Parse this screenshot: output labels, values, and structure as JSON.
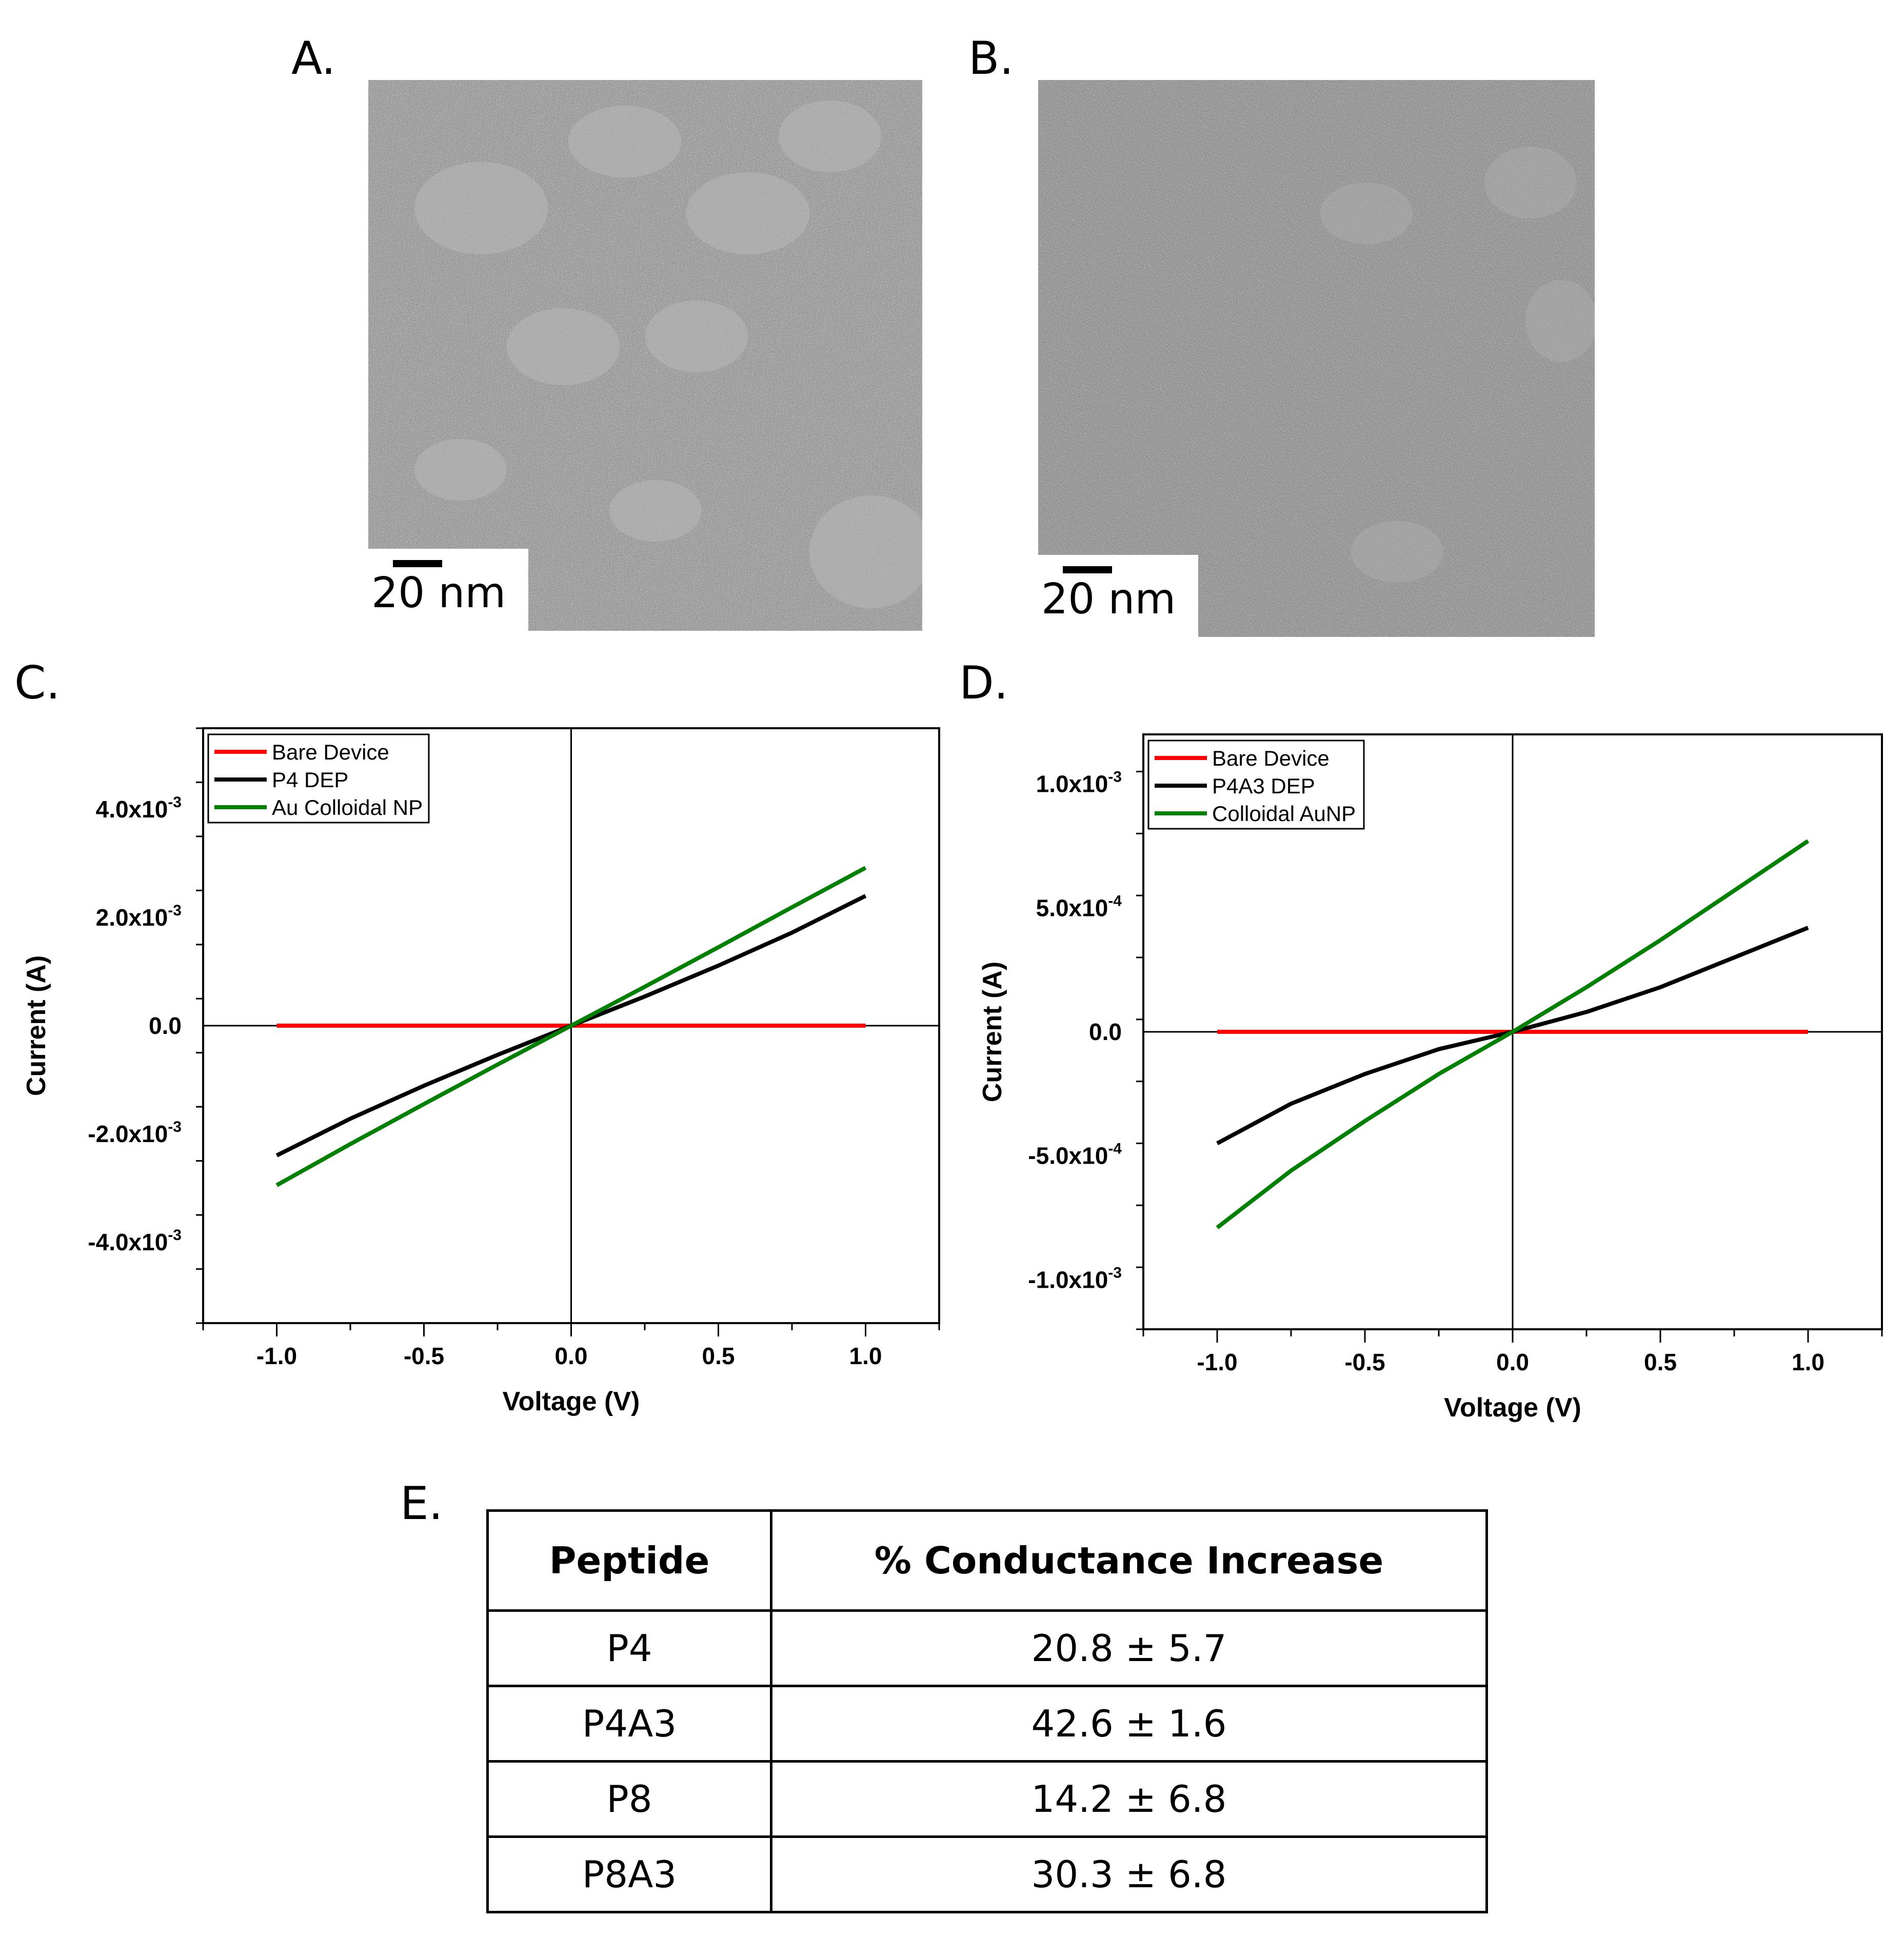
{
  "figure": {
    "panel_a": {
      "label": "A.",
      "scale_bar": "20 nm"
    },
    "panel_b": {
      "label": "B.",
      "scale_bar": "20 nm"
    },
    "panel_c": {
      "label": "C."
    },
    "panel_d": {
      "label": "D."
    },
    "panel_e": {
      "label": "E."
    }
  },
  "colors": {
    "bare": "#ff0000",
    "dep": "#000000",
    "colloid": "#008000"
  },
  "chart_data": [
    {
      "id": "C",
      "type": "line",
      "xlabel": "Voltage (V)",
      "ylabel": "Current (A)",
      "xlim": [
        -1.25,
        1.25
      ],
      "ylim": [
        -0.0055,
        0.0055
      ],
      "x_ticks": [
        -1.0,
        -0.5,
        0.0,
        0.5,
        1.0
      ],
      "x_tick_labels": [
        "-1.0",
        "-0.5",
        "0.0",
        "0.5",
        "1.0"
      ],
      "y_ticks": [
        -0.004,
        -0.002,
        0,
        0.002,
        0.004
      ],
      "y_tick_labels": [
        {
          "base": "-4.0x10",
          "exp": "-3"
        },
        {
          "base": "-2.0x10",
          "exp": "-3"
        },
        {
          "base": "0.0",
          "exp": ""
        },
        {
          "base": "2.0x10",
          "exp": "-3"
        },
        {
          "base": "4.0x10",
          "exp": "-3"
        }
      ],
      "legend_position": "top-left",
      "series": [
        {
          "name": "Bare Device",
          "color": "#ff0000",
          "x": [
            -1.0,
            1.0
          ],
          "y": [
            0,
            0
          ]
        },
        {
          "name": "P4 DEP",
          "color": "#000000",
          "x": [
            -1.0,
            -0.75,
            -0.5,
            -0.25,
            0.0,
            0.25,
            0.5,
            0.75,
            1.0
          ],
          "y": [
            -0.0024,
            -0.00172,
            -0.00111,
            -0.00054,
            0,
            0.00054,
            0.00111,
            0.00172,
            0.0024
          ]
        },
        {
          "name": "Au Colloidal NP",
          "color": "#008000",
          "x": [
            -1.0,
            -0.75,
            -0.5,
            -0.25,
            0.0,
            0.25,
            0.5,
            0.75,
            1.0
          ],
          "y": [
            -0.00295,
            -0.00219,
            -0.00145,
            -0.00072,
            0,
            0.00072,
            0.00145,
            0.00219,
            0.00292
          ]
        }
      ]
    },
    {
      "id": "D",
      "type": "line",
      "xlabel": "Voltage (V)",
      "ylabel": "Current (A)",
      "xlim": [
        -1.25,
        1.25
      ],
      "ylim": [
        -0.0012,
        0.0012
      ],
      "x_ticks": [
        -1.0,
        -0.5,
        0.0,
        0.5,
        1.0
      ],
      "x_tick_labels": [
        "-1.0",
        "-0.5",
        "0.0",
        "0.5",
        "1.0"
      ],
      "y_ticks": [
        -0.001,
        -0.0005,
        0,
        0.0005,
        0.001
      ],
      "y_tick_labels": [
        {
          "base": "-1.0x10",
          "exp": "-3"
        },
        {
          "base": "-5.0x10",
          "exp": "-4"
        },
        {
          "base": "0.0",
          "exp": ""
        },
        {
          "base": "5.0x10",
          "exp": "-4"
        },
        {
          "base": "1.0x10",
          "exp": "-3"
        }
      ],
      "legend_position": "top-left",
      "series": [
        {
          "name": "Bare Device",
          "color": "#ff0000",
          "x": [
            -1.0,
            1.0
          ],
          "y": [
            0,
            0
          ]
        },
        {
          "name": "P4A3 DEP",
          "color": "#000000",
          "x": [
            -1.0,
            -0.75,
            -0.5,
            -0.25,
            0.0,
            0.25,
            0.5,
            0.75,
            1.0
          ],
          "y": [
            -0.00045,
            -0.00029,
            -0.00017,
            -7e-05,
            0,
            8e-05,
            0.00018,
            0.0003,
            0.00042
          ]
        },
        {
          "name": "Colloidal AuNP",
          "color": "#008000",
          "x": [
            -1.0,
            -0.75,
            -0.5,
            -0.25,
            0.0,
            0.25,
            0.5,
            0.75,
            1.0
          ],
          "y": [
            -0.00079,
            -0.00056,
            -0.00036,
            -0.00017,
            0,
            0.00018,
            0.00037,
            0.00057,
            0.00077
          ]
        }
      ]
    }
  ],
  "table": {
    "headers": [
      "Peptide",
      "% Conductance Increase"
    ],
    "rows": [
      [
        "P4",
        "20.8 ± 5.7"
      ],
      [
        "P4A3",
        "42.6 ± 1.6"
      ],
      [
        "P8",
        "14.2 ± 6.8"
      ],
      [
        "P8A3",
        "30.3 ± 6.8"
      ]
    ]
  }
}
